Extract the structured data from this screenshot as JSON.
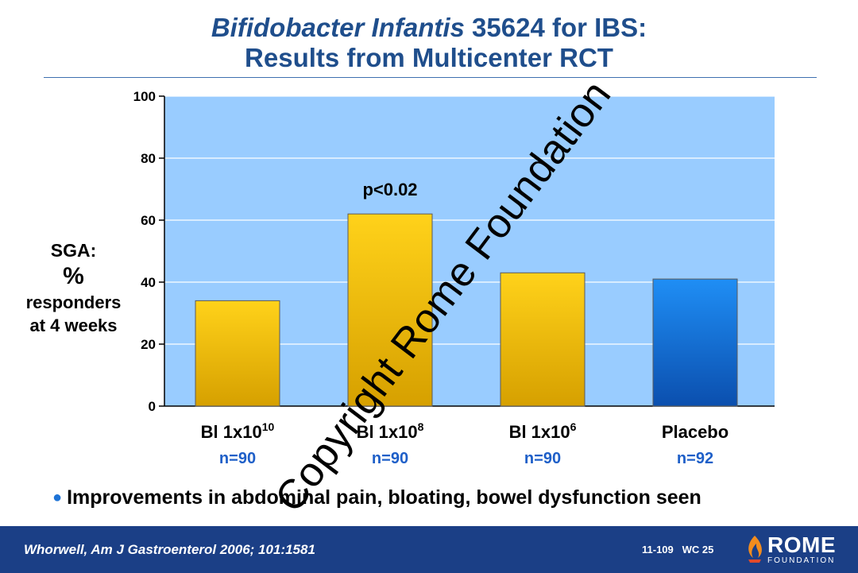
{
  "title": {
    "line1_italic": "Bifidobacter Infantis",
    "line1_rest": " 35624 for IBS:",
    "line2": "Results from Multicenter RCT"
  },
  "y_axis_label": {
    "line1": "SGA:",
    "line2": "%",
    "line3": "responders",
    "line4": "at 4 weeks"
  },
  "chart_data": {
    "type": "bar",
    "categories": [
      {
        "base": "Bl 1x10",
        "sup": "10",
        "n": "n=90"
      },
      {
        "base": "Bl 1x10",
        "sup": "8",
        "n": "n=90"
      },
      {
        "base": "Bl 1x10",
        "sup": "6",
        "n": "n=90"
      },
      {
        "base": "Placebo",
        "sup": "",
        "n": "n=92"
      }
    ],
    "values": [
      34,
      62,
      43,
      41
    ],
    "bar_colors": [
      "gold",
      "gold",
      "gold",
      "blue"
    ],
    "ylim": [
      0,
      100
    ],
    "yticks": [
      0,
      20,
      40,
      60,
      80,
      100
    ],
    "grid": true,
    "annotation": {
      "text": "p<0.02",
      "bar_index": 1
    },
    "colors": {
      "plot_bg": "#99ccff",
      "gold_top": "#ffd21a",
      "gold_bottom": "#d6a000",
      "blue_top": "#1f8ef5",
      "blue_bottom": "#0b4fae",
      "n_label": "#1e5fc8"
    }
  },
  "note": {
    "bullet_icon": "bullet-dot",
    "text": "Improvements in abdominal pain, bloating, bowel dysfunction seen"
  },
  "watermark": "Copyright Rome Foundation",
  "footer": {
    "citation": "Whorwell, Am J Gastroenterol 2006; 101:1581",
    "code": "11-109   WC 25",
    "logo_word": "ROME",
    "logo_sub": "FOUNDATION",
    "bg_color": "#1b3f86"
  }
}
